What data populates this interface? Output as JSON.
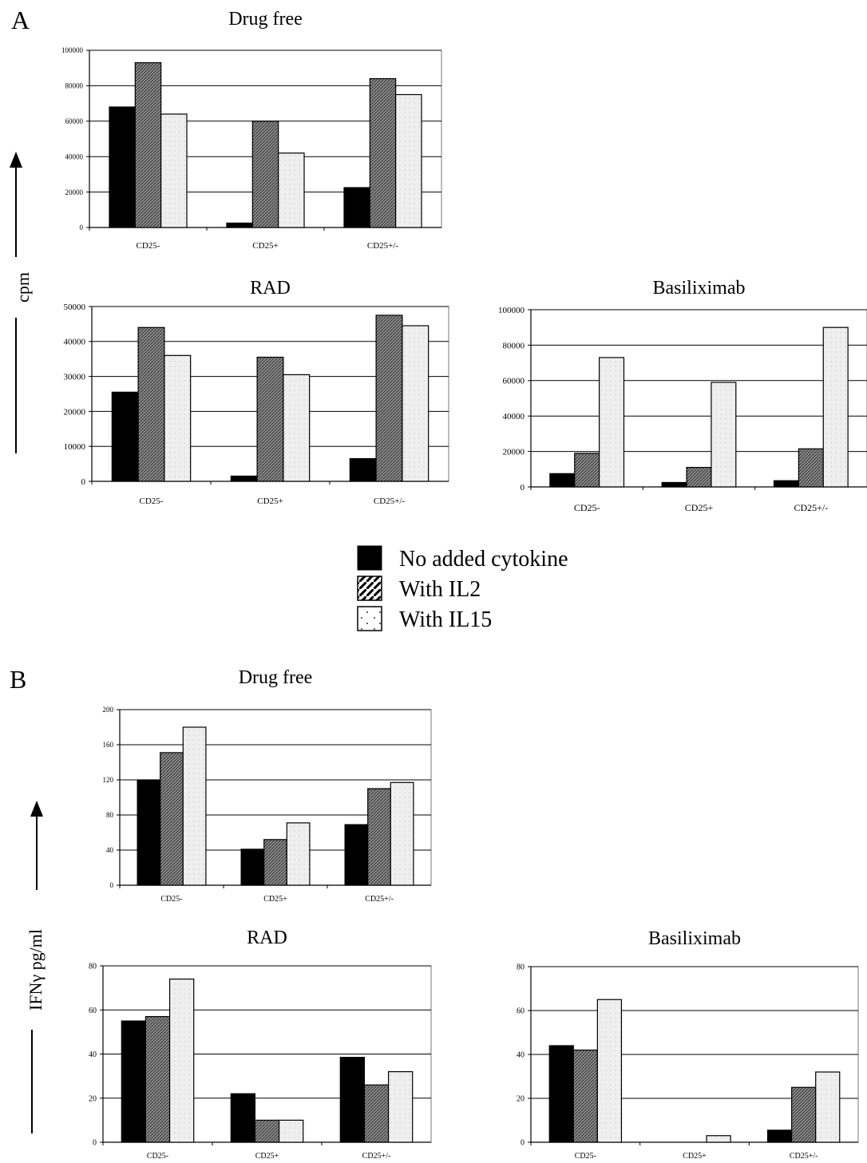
{
  "panels": [
    {
      "label": "A"
    },
    {
      "label": "B"
    }
  ],
  "y_axis_titles": {
    "A": "cpm",
    "B": "IFNγ pg/ml"
  },
  "legend": [
    {
      "label": "No added cytokine",
      "pattern": "solid"
    },
    {
      "label": "With IL2",
      "pattern": "hatch"
    },
    {
      "label": "With IL15",
      "pattern": "dots"
    }
  ],
  "colors": {
    "no_cytokine": "#000000",
    "il2": "#8a8a8a",
    "il15": "#efefef",
    "gridline": "#000000"
  },
  "chart_data": [
    {
      "type": "bar",
      "panel": "A",
      "title": "Drug free",
      "categories": [
        "CD25-",
        "CD25+",
        "CD25+/-"
      ],
      "ylim": [
        0,
        100000
      ],
      "yticks": [
        "0",
        "20000",
        "40000",
        "60000",
        "80000",
        "100000"
      ],
      "series": [
        {
          "name": "No added cytokine",
          "values": [
            68000,
            2500,
            22500
          ]
        },
        {
          "name": "With IL2",
          "values": [
            93000,
            60000,
            84000
          ]
        },
        {
          "name": "With IL15",
          "values": [
            64000,
            42000,
            75000
          ]
        }
      ],
      "grid": true
    },
    {
      "type": "bar",
      "panel": "A",
      "title": "RAD",
      "categories": [
        "CD25-",
        "CD25+",
        "CD25+/-"
      ],
      "ylim": [
        0,
        50000
      ],
      "yticks": [
        "0",
        "10000",
        "20000",
        "30000",
        "40000",
        "50000"
      ],
      "series": [
        {
          "name": "No added cytokine",
          "values": [
            25500,
            1500,
            6500
          ]
        },
        {
          "name": "With IL2",
          "values": [
            44000,
            35500,
            47500
          ]
        },
        {
          "name": "With IL15",
          "values": [
            36000,
            30500,
            44500
          ]
        }
      ],
      "grid": true
    },
    {
      "type": "bar",
      "panel": "A",
      "title": "Basiliximab",
      "categories": [
        "CD25-",
        "CD25+",
        "CD25+/-"
      ],
      "ylim": [
        0,
        100000
      ],
      "yticks": [
        "0",
        "20000",
        "40000",
        "60000",
        "80000",
        "100000"
      ],
      "series": [
        {
          "name": "No added cytokine",
          "values": [
            7500,
            2500,
            3500
          ]
        },
        {
          "name": "With IL2",
          "values": [
            19000,
            11000,
            21500
          ]
        },
        {
          "name": "With IL15",
          "values": [
            73000,
            59000,
            90000
          ]
        }
      ],
      "grid": true
    },
    {
      "type": "bar",
      "panel": "B",
      "title": "Drug free",
      "categories": [
        "CD25-",
        "CD25+",
        "CD25+/-"
      ],
      "ylim": [
        0,
        200
      ],
      "yticks": [
        "0",
        "40",
        "80",
        "120",
        "160",
        "200"
      ],
      "series": [
        {
          "name": "No added cytokine",
          "values": [
            120,
            41,
            69
          ]
        },
        {
          "name": "With IL2",
          "values": [
            151,
            52,
            110
          ]
        },
        {
          "name": "With IL15",
          "values": [
            180,
            71,
            117
          ]
        }
      ],
      "grid": true
    },
    {
      "type": "bar",
      "panel": "B",
      "title": "RAD",
      "categories": [
        "CD25-",
        "CD25+",
        "CD25+/-"
      ],
      "ylim": [
        0,
        80
      ],
      "yticks": [
        "0",
        "20",
        "40",
        "60",
        "80"
      ],
      "series": [
        {
          "name": "No added cytokine",
          "values": [
            55,
            22,
            38.5
          ]
        },
        {
          "name": "With IL2",
          "values": [
            57,
            10,
            26
          ]
        },
        {
          "name": "With IL15",
          "values": [
            74,
            10,
            32
          ]
        }
      ],
      "grid": true
    },
    {
      "type": "bar",
      "panel": "B",
      "title": "Basiliximab",
      "categories": [
        "CD25-",
        "CD25+",
        "CD25+/-"
      ],
      "ylim": [
        0,
        80
      ],
      "yticks": [
        "0",
        "20",
        "40",
        "60",
        "80"
      ],
      "series": [
        {
          "name": "No added cytokine",
          "values": [
            44,
            0,
            5.5
          ]
        },
        {
          "name": "With IL2",
          "values": [
            42,
            0,
            25
          ]
        },
        {
          "name": "With IL15",
          "values": [
            65,
            3,
            32
          ]
        }
      ],
      "grid": true
    }
  ]
}
